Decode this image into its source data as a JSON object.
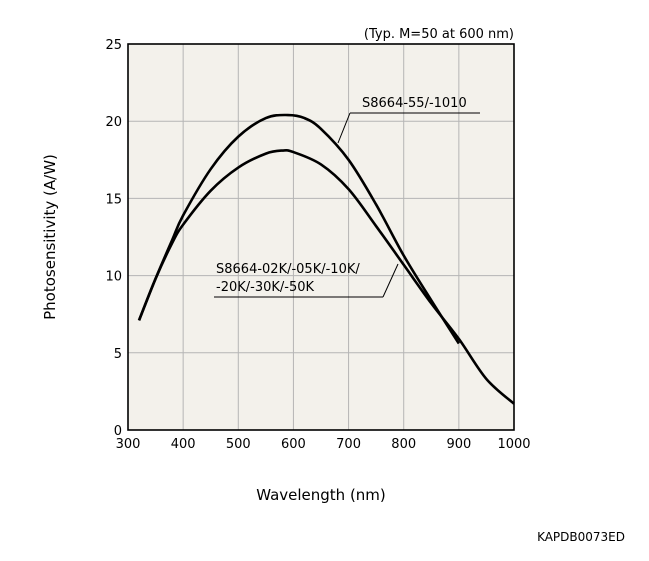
{
  "chart_data": {
    "type": "line",
    "title": "",
    "note": "(Typ. M=50 at 600 nm)",
    "xlabel": "Wavelength (nm)",
    "ylabel": "Photosensitivity (A/W)",
    "xlim": [
      300,
      1000
    ],
    "ylim": [
      0,
      25
    ],
    "xticks": [
      300,
      400,
      500,
      600,
      700,
      800,
      900,
      1000
    ],
    "yticks": [
      0,
      5,
      10,
      15,
      20,
      25
    ],
    "grid": true,
    "series": [
      {
        "name": "S8664-55/-1010",
        "x": [
          320,
          350,
          380,
          400,
          450,
          500,
          550,
          590,
          620,
          650,
          700,
          750,
          800,
          850,
          900
        ],
        "y": [
          7.1,
          9.8,
          12.3,
          13.9,
          16.9,
          19.0,
          20.2,
          20.4,
          20.2,
          19.5,
          17.5,
          14.6,
          11.3,
          8.4,
          5.6
        ]
      },
      {
        "name": "S8664-02K/-05K/-10K/\n-20K/-30K/-50K",
        "x": [
          320,
          350,
          380,
          400,
          450,
          500,
          550,
          580,
          600,
          650,
          700,
          750,
          800,
          850,
          900,
          950,
          1000
        ],
        "y": [
          7.1,
          9.8,
          12.1,
          13.3,
          15.5,
          17.0,
          17.9,
          18.1,
          18.0,
          17.2,
          15.6,
          13.2,
          10.7,
          8.2,
          5.9,
          3.3,
          1.7
        ]
      }
    ],
    "annotations": [
      "S8664-55/-1010",
      "S8664-02K/-05K/-10K/",
      "-20K/-30K/-50K"
    ]
  },
  "footer_code": "KAPDB0073ED",
  "colors": {
    "line": "#000000",
    "plot_bg": "#f3f1eb",
    "grid": "#b5b5b5"
  }
}
